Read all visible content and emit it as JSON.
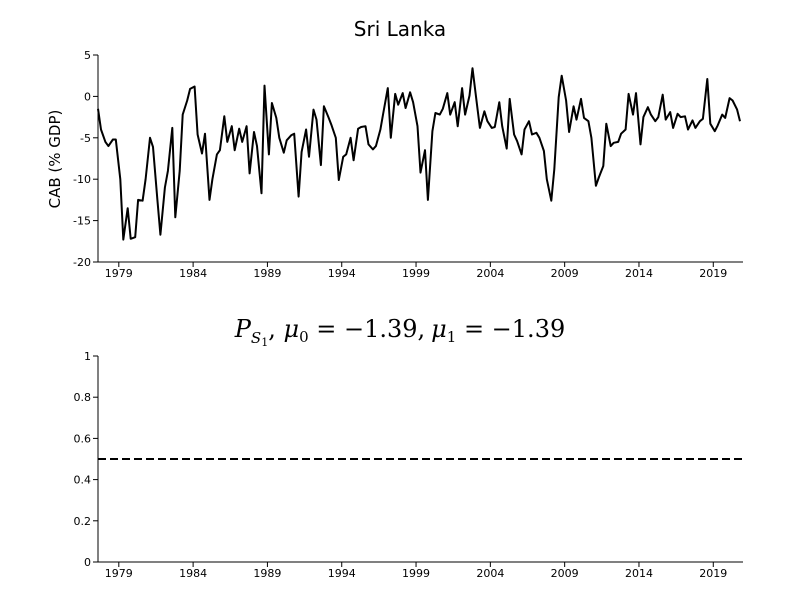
{
  "chart_data": [
    {
      "type": "line",
      "title": "Sri Lanka",
      "ylabel": "CAB (% GDP)",
      "xlabel": "",
      "xlim": [
        1977.6,
        2021.0
      ],
      "ylim": [
        -20,
        5
      ],
      "yticks": [
        5,
        0,
        -5,
        -10,
        -15,
        -20
      ],
      "xticks": [
        1979,
        1984,
        1989,
        1994,
        1999,
        2004,
        2009,
        2014,
        2019
      ],
      "grid": false,
      "series": [
        {
          "values": [
            [
              1977.6,
              -1.5
            ],
            [
              1977.8,
              -4.0
            ],
            [
              1978.1,
              -5.5
            ],
            [
              1978.3,
              -6.0
            ],
            [
              1978.6,
              -5.2
            ],
            [
              1978.8,
              -5.2
            ],
            [
              1979.1,
              -10.0
            ],
            [
              1979.3,
              -17.3
            ],
            [
              1979.6,
              -13.5
            ],
            [
              1979.8,
              -17.2
            ],
            [
              1980.1,
              -17.0
            ],
            [
              1980.3,
              -12.5
            ],
            [
              1980.6,
              -12.6
            ],
            [
              1980.8,
              -10.0
            ],
            [
              1981.1,
              -5.0
            ],
            [
              1981.3,
              -6.1
            ],
            [
              1981.6,
              -12.5
            ],
            [
              1981.8,
              -16.7
            ],
            [
              1982.1,
              -11.0
            ],
            [
              1982.3,
              -9.0
            ],
            [
              1982.6,
              -3.8
            ],
            [
              1982.8,
              -14.6
            ],
            [
              1983.1,
              -9.0
            ],
            [
              1983.3,
              -2.2
            ],
            [
              1983.6,
              -0.5
            ],
            [
              1983.8,
              0.9
            ],
            [
              1984.1,
              1.2
            ],
            [
              1984.3,
              -4.6
            ],
            [
              1984.6,
              -6.9
            ],
            [
              1984.8,
              -4.5
            ],
            [
              1985.1,
              -12.5
            ],
            [
              1985.3,
              -10.0
            ],
            [
              1985.6,
              -7.0
            ],
            [
              1985.8,
              -6.5
            ],
            [
              1986.1,
              -2.4
            ],
            [
              1986.3,
              -5.5
            ],
            [
              1986.6,
              -3.6
            ],
            [
              1986.8,
              -6.5
            ],
            [
              1987.1,
              -3.9
            ],
            [
              1987.3,
              -5.5
            ],
            [
              1987.6,
              -3.6
            ],
            [
              1987.8,
              -9.3
            ],
            [
              1988.1,
              -4.3
            ],
            [
              1988.3,
              -6.0
            ],
            [
              1988.6,
              -11.7
            ],
            [
              1988.8,
              1.3
            ],
            [
              1989.1,
              -7.0
            ],
            [
              1989.3,
              -0.8
            ],
            [
              1989.6,
              -2.6
            ],
            [
              1989.8,
              -5.0
            ],
            [
              1990.1,
              -6.8
            ],
            [
              1990.3,
              -5.3
            ],
            [
              1990.6,
              -4.7
            ],
            [
              1990.8,
              -4.5
            ],
            [
              1991.1,
              -12.1
            ],
            [
              1991.3,
              -6.7
            ],
            [
              1991.6,
              -4.0
            ],
            [
              1991.8,
              -7.3
            ],
            [
              1992.1,
              -1.6
            ],
            [
              1992.3,
              -2.8
            ],
            [
              1992.6,
              -8.3
            ],
            [
              1992.8,
              -1.2
            ],
            [
              1993.1,
              -2.5
            ],
            [
              1993.3,
              -3.4
            ],
            [
              1993.6,
              -5.0
            ],
            [
              1993.8,
              -10.1
            ],
            [
              1994.1,
              -7.3
            ],
            [
              1994.3,
              -7.0
            ],
            [
              1994.6,
              -5.0
            ],
            [
              1994.8,
              -7.7
            ],
            [
              1995.1,
              -3.9
            ],
            [
              1995.3,
              -3.7
            ],
            [
              1995.6,
              -3.6
            ],
            [
              1995.8,
              -5.8
            ],
            [
              1996.1,
              -6.4
            ],
            [
              1996.3,
              -6.0
            ],
            [
              1996.6,
              -4.0
            ],
            [
              1996.8,
              -2.0
            ],
            [
              1997.1,
              1.0
            ],
            [
              1997.3,
              -5.0
            ],
            [
              1997.6,
              0.3
            ],
            [
              1997.8,
              -1.0
            ],
            [
              1998.1,
              0.4
            ],
            [
              1998.3,
              -1.4
            ],
            [
              1998.6,
              0.5
            ],
            [
              1998.8,
              -0.7
            ],
            [
              1999.1,
              -3.6
            ],
            [
              1999.3,
              -9.2
            ],
            [
              1999.6,
              -6.5
            ],
            [
              1999.8,
              -12.5
            ],
            [
              2000.1,
              -4.2
            ],
            [
              2000.3,
              -2.0
            ],
            [
              2000.6,
              -2.2
            ],
            [
              2000.8,
              -1.5
            ],
            [
              2001.1,
              0.4
            ],
            [
              2001.3,
              -2.2
            ],
            [
              2001.6,
              -0.7
            ],
            [
              2001.8,
              -3.6
            ],
            [
              2002.1,
              1.0
            ],
            [
              2002.3,
              -2.2
            ],
            [
              2002.6,
              0.1
            ],
            [
              2002.8,
              3.4
            ],
            [
              2003.1,
              -1.0
            ],
            [
              2003.3,
              -3.8
            ],
            [
              2003.6,
              -1.8
            ],
            [
              2003.8,
              -3.0
            ],
            [
              2004.1,
              -3.8
            ],
            [
              2004.3,
              -3.7
            ],
            [
              2004.6,
              -0.7
            ],
            [
              2004.8,
              -3.6
            ],
            [
              2005.1,
              -6.3
            ],
            [
              2005.3,
              -0.3
            ],
            [
              2005.6,
              -4.6
            ],
            [
              2005.8,
              -5.4
            ],
            [
              2006.1,
              -7.0
            ],
            [
              2006.3,
              -4.0
            ],
            [
              2006.6,
              -3.0
            ],
            [
              2006.8,
              -4.6
            ],
            [
              2007.1,
              -4.4
            ],
            [
              2007.3,
              -5.0
            ],
            [
              2007.6,
              -6.6
            ],
            [
              2007.8,
              -10.0
            ],
            [
              2008.1,
              -12.6
            ],
            [
              2008.3,
              -8.8
            ],
            [
              2008.6,
              -0.1
            ],
            [
              2008.8,
              2.5
            ],
            [
              2009.1,
              -0.5
            ],
            [
              2009.3,
              -4.3
            ],
            [
              2009.6,
              -1.2
            ],
            [
              2009.8,
              -2.8
            ],
            [
              2010.1,
              -0.3
            ],
            [
              2010.3,
              -2.6
            ],
            [
              2010.6,
              -3.0
            ],
            [
              2010.8,
              -5.0
            ],
            [
              2011.1,
              -10.8
            ],
            [
              2011.3,
              -9.8
            ],
            [
              2011.6,
              -8.4
            ],
            [
              2011.8,
              -3.3
            ],
            [
              2012.1,
              -6.0
            ],
            [
              2012.3,
              -5.6
            ],
            [
              2012.6,
              -5.5
            ],
            [
              2012.8,
              -4.5
            ],
            [
              2013.1,
              -4.0
            ],
            [
              2013.3,
              0.3
            ],
            [
              2013.6,
              -2.2
            ],
            [
              2013.8,
              0.4
            ],
            [
              2014.1,
              -5.8
            ],
            [
              2014.3,
              -2.5
            ],
            [
              2014.6,
              -1.3
            ],
            [
              2014.8,
              -2.2
            ],
            [
              2015.1,
              -3.0
            ],
            [
              2015.3,
              -2.5
            ],
            [
              2015.6,
              0.2
            ],
            [
              2015.8,
              -2.8
            ],
            [
              2016.1,
              -1.9
            ],
            [
              2016.3,
              -3.8
            ],
            [
              2016.6,
              -2.1
            ],
            [
              2016.8,
              -2.5
            ],
            [
              2017.1,
              -2.4
            ],
            [
              2017.3,
              -4.0
            ],
            [
              2017.6,
              -2.9
            ],
            [
              2017.8,
              -3.8
            ],
            [
              2018.1,
              -3.0
            ],
            [
              2018.3,
              -2.7
            ],
            [
              2018.6,
              2.1
            ],
            [
              2018.8,
              -3.3
            ],
            [
              2019.1,
              -4.2
            ],
            [
              2019.3,
              -3.5
            ],
            [
              2019.6,
              -2.2
            ],
            [
              2019.8,
              -2.6
            ],
            [
              2020.1,
              -0.2
            ],
            [
              2020.3,
              -0.5
            ],
            [
              2020.6,
              -1.6
            ],
            [
              2020.8,
              -3.0
            ]
          ]
        }
      ]
    },
    {
      "type": "line",
      "title": "P_{S_1}, μ_0 = −1.39, μ_1 = −1.39",
      "title_parts": {
        "p": "P",
        "p_sub": "S",
        "p_subsub": "1",
        "mu0": "μ",
        "mu0_sub": "0",
        "mu0_rest": " = −1.39,",
        "mu1": "μ",
        "mu1_sub": "1",
        "mu1_rest": " = −1.39"
      },
      "xlabel": "",
      "ylabel": "",
      "xlim": [
        1977.6,
        2021.0
      ],
      "ylim": [
        0,
        1
      ],
      "yticks": [
        1,
        0.8,
        0.6,
        0.4,
        0.2,
        0
      ],
      "xticks": [
        1979,
        1984,
        1989,
        1994,
        1999,
        2004,
        2009,
        2014,
        2019
      ],
      "grid": false,
      "series": [
        {
          "style": "dashed",
          "values": [
            [
              1977.6,
              0.5
            ],
            [
              2021.0,
              0.5
            ]
          ]
        }
      ]
    }
  ]
}
